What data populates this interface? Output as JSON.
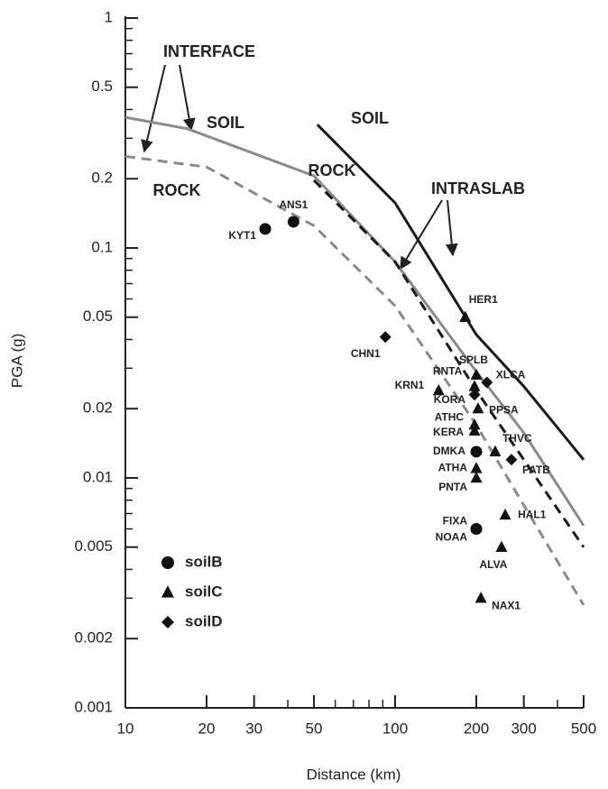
{
  "chart_data": {
    "type": "scatter",
    "x_label": "Distance (km)",
    "y_label": "PGA (g)",
    "log_x": true,
    "log_y": true,
    "xlim": [
      10,
      500
    ],
    "ylim": [
      0.001,
      1
    ],
    "xticks": [
      10,
      20,
      30,
      50,
      100,
      200,
      300,
      500
    ],
    "xminorticks": [
      40,
      60,
      70,
      80,
      90,
      400
    ],
    "yticks": [
      0.001,
      0.002,
      0.005,
      0.01,
      0.02,
      0.05,
      0.1,
      0.2,
      0.5,
      1
    ],
    "yminorticks": [
      0.003,
      0.004,
      0.006,
      0.007,
      0.008,
      0.009,
      0.03,
      0.04,
      0.06,
      0.07,
      0.08,
      0.09,
      0.3,
      0.4,
      0.6,
      0.7,
      0.8,
      0.9
    ],
    "annotations": [
      "INTERFACE",
      "SOIL",
      "SOIL",
      "ROCK",
      "ROCK",
      "INTRASLAB"
    ],
    "series": [
      {
        "name": "soilB",
        "marker": "circle",
        "color": "#111111",
        "x": [
          33,
          42,
          200,
          200,
          200
        ],
        "values": [
          0.121,
          0.13,
          0.013,
          0.006,
          0.006
        ],
        "labels": [
          "KYT1",
          "ANS1",
          "DMKA",
          "FIXA",
          "NOAA"
        ]
      },
      {
        "name": "soilC",
        "marker": "triangle",
        "color": "#111111",
        "x": [
          182,
          200,
          145,
          197,
          203,
          197,
          197,
          235,
          200,
          200,
          256,
          248,
          208
        ],
        "values": [
          0.05,
          0.028,
          0.024,
          0.025,
          0.02,
          0.017,
          0.016,
          0.013,
          0.011,
          0.01,
          0.0069,
          0.005,
          0.003
        ],
        "labels": [
          "HER1",
          "SPLB",
          "KRN1",
          "RNTA",
          "PPSA",
          "ATHC",
          "KERA",
          "THVC",
          "ATHA",
          "PNTA",
          "HAL1",
          "ALVA",
          "NAX1"
        ]
      },
      {
        "name": "soilD",
        "marker": "diamond",
        "color": "#111111",
        "x": [
          92,
          219,
          197,
          270
        ],
        "values": [
          0.041,
          0.026,
          0.023,
          0.012
        ],
        "labels": [
          "CHN1",
          "XLCA",
          "KORA",
          "PATB"
        ]
      }
    ],
    "curves": [
      {
        "color": "#8a8a8a",
        "dash": false,
        "x": [
          10,
          17,
          50,
          100,
          200,
          300,
          500
        ],
        "values": [
          0.37,
          0.33,
          0.206,
          0.087,
          0.029,
          0.0157,
          0.0062
        ]
      },
      {
        "color": "#8a8a8a",
        "dash": true,
        "x": [
          10,
          20,
          50,
          100,
          200,
          300,
          500
        ],
        "values": [
          0.25,
          0.225,
          0.125,
          0.056,
          0.017,
          0.0076,
          0.0028
        ]
      },
      {
        "color": "#1a1a1a",
        "dash": false,
        "x": [
          51.5,
          100,
          200,
          300,
          500
        ],
        "values": [
          0.344,
          0.157,
          0.042,
          0.025,
          0.012
        ]
      },
      {
        "color": "#1a1a1a",
        "dash": true,
        "x": [
          50,
          100,
          200,
          300,
          500
        ],
        "values": [
          0.197,
          0.087,
          0.024,
          0.012,
          0.005
        ]
      }
    ]
  }
}
